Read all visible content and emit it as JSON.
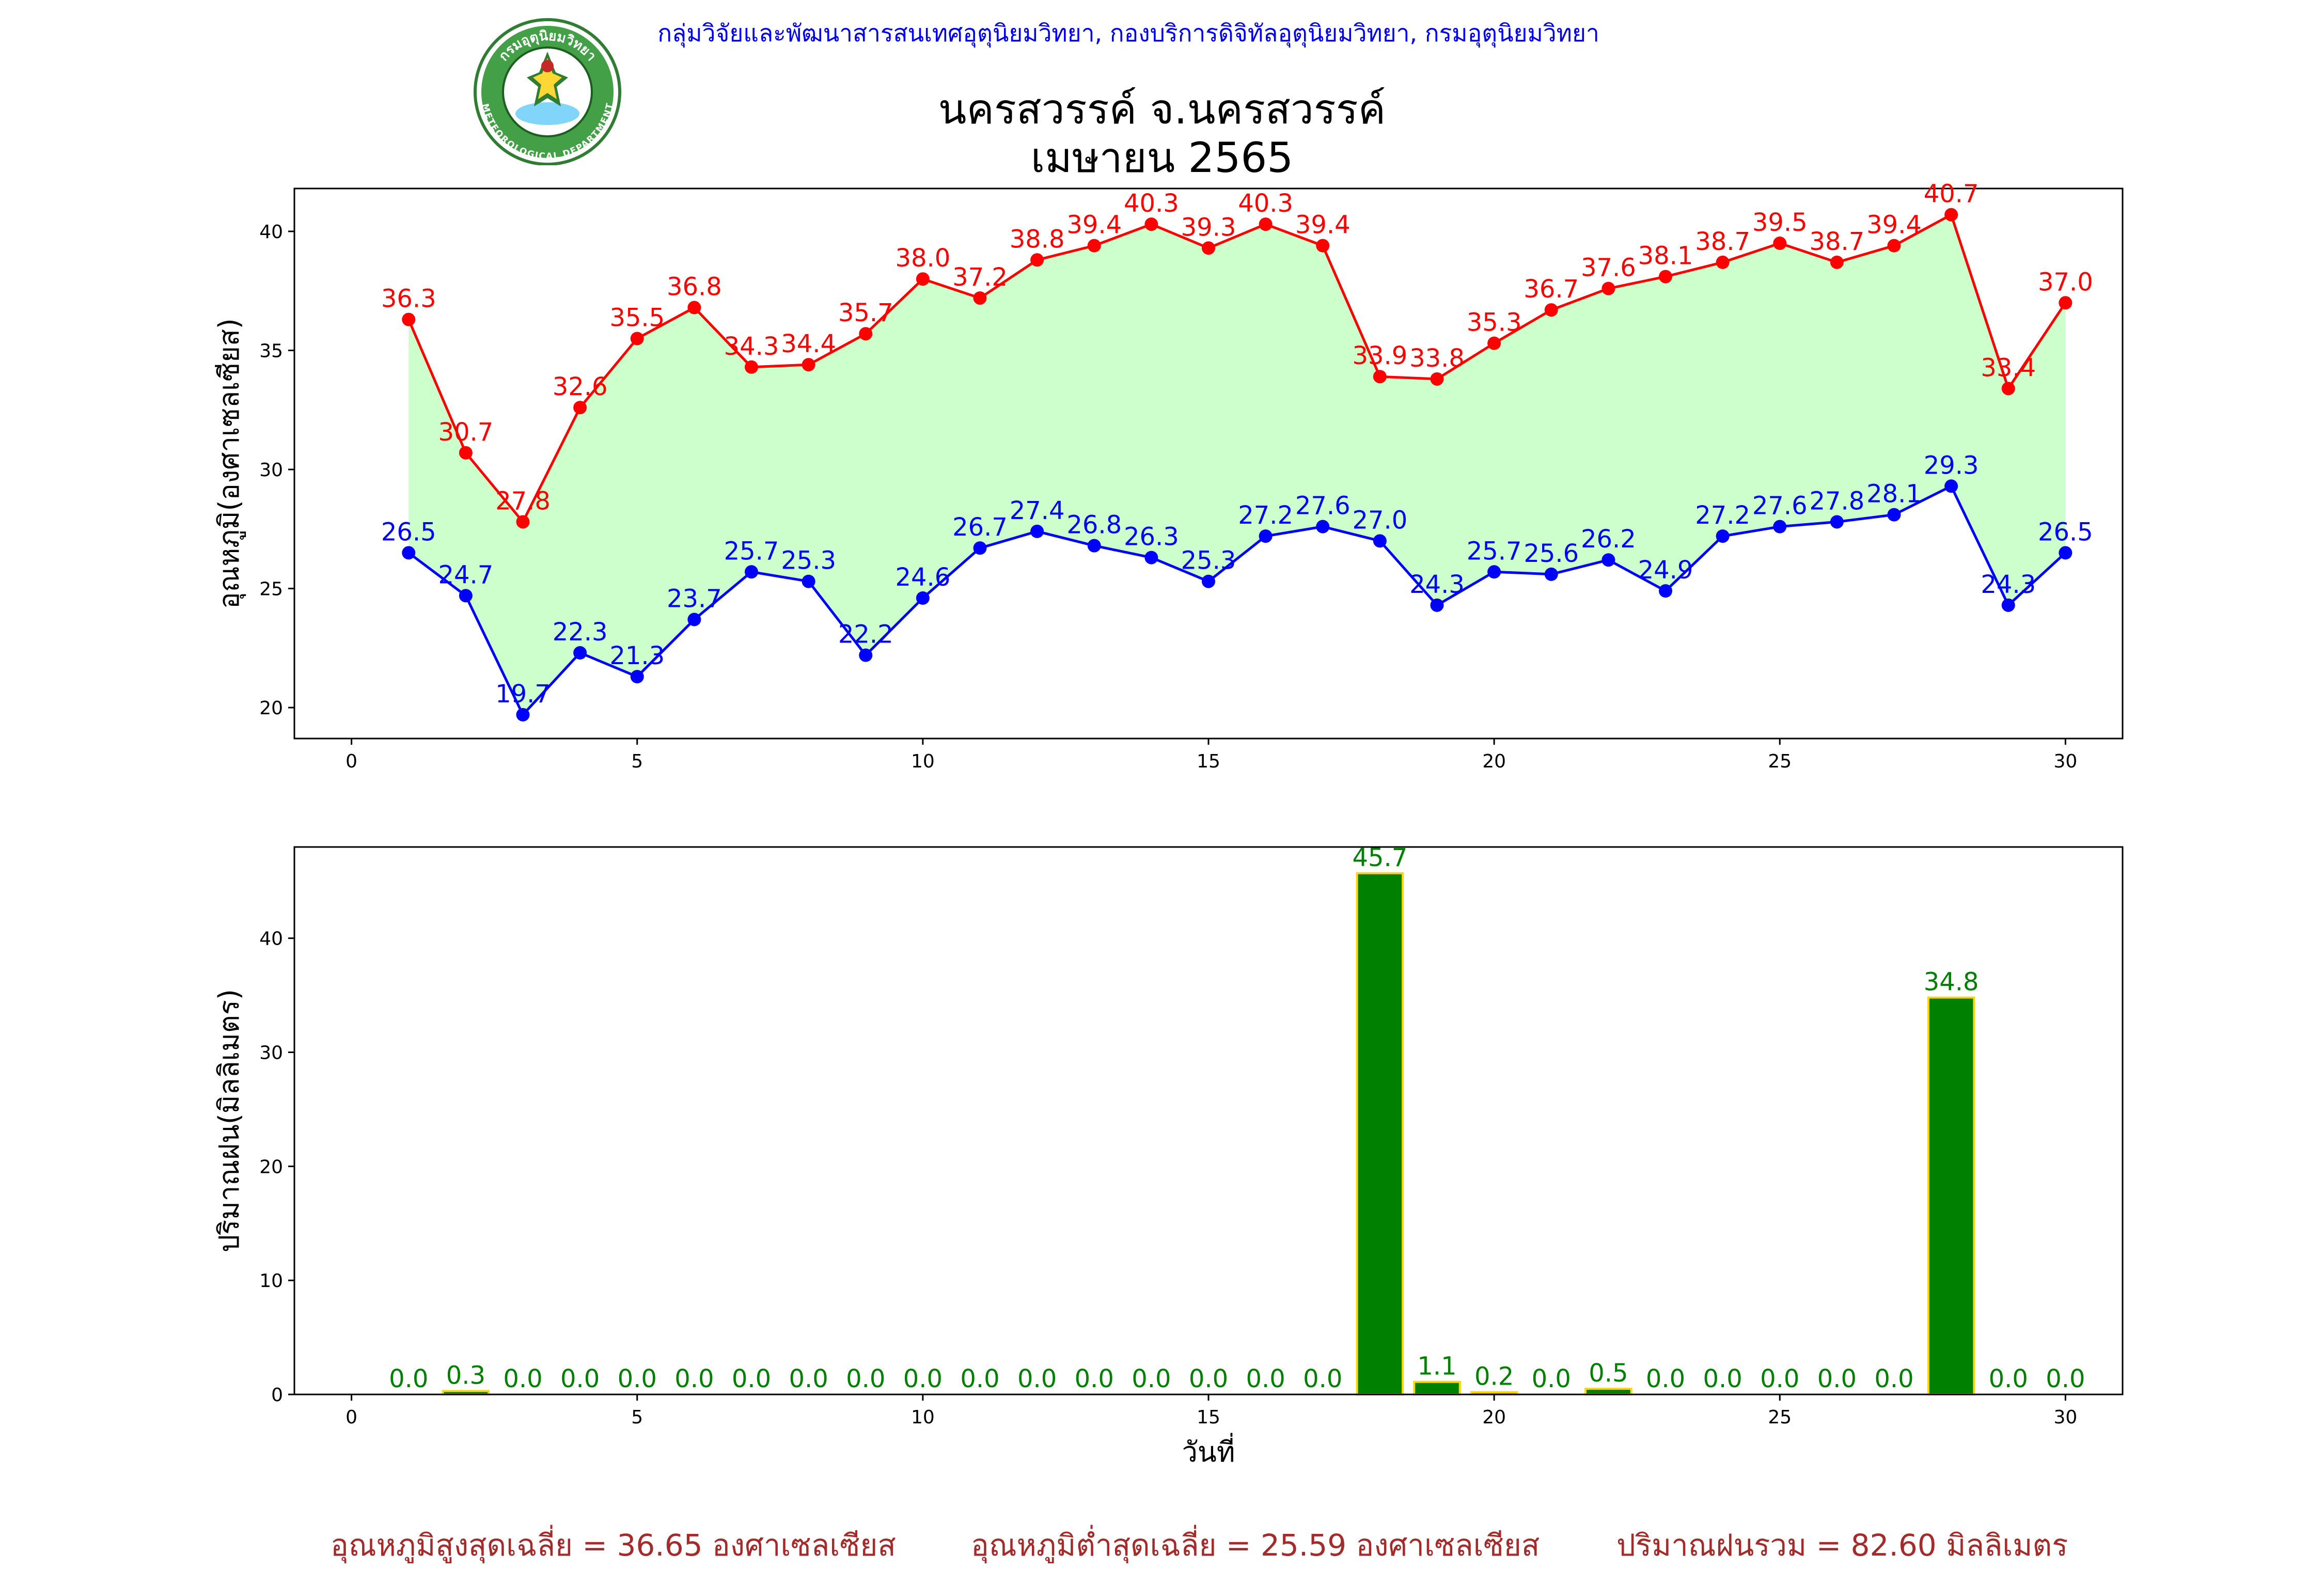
{
  "header": {
    "agency_line": "กลุ่มวิจัยและพัฒนาสารสนเทศอุตุนิยมวิทยา, กองบริการดิจิทัลอุตุนิยมวิทยา, กรมอุตุนิยมวิทยา",
    "title_line1": "นครสวรรค์  จ.นครสวรรค์",
    "title_line2": "เมษายน 2565",
    "logo": {
      "icon": "meteorological-department-seal-icon",
      "text_top": "กรมอุตุนิยมวิทยา",
      "text_bottom": "METEOROLOGICAL DEPARTMENT"
    }
  },
  "chart_data": [
    {
      "type": "line",
      "title": "",
      "xlabel": "",
      "ylabel": "อุณหภูมิ(องศาเซลเซียส)",
      "x": [
        1,
        2,
        3,
        4,
        5,
        6,
        7,
        8,
        9,
        10,
        11,
        12,
        13,
        14,
        15,
        16,
        17,
        18,
        19,
        20,
        21,
        22,
        23,
        24,
        25,
        26,
        27,
        28,
        29,
        30
      ],
      "series": [
        {
          "name": "",
          "color": "#ff0000",
          "values": [
            36.3,
            30.7,
            27.8,
            32.6,
            35.5,
            36.8,
            34.3,
            34.4,
            35.7,
            38.0,
            37.2,
            38.8,
            39.4,
            40.3,
            39.3,
            40.3,
            39.4,
            33.9,
            33.8,
            35.3,
            36.7,
            37.6,
            38.1,
            38.7,
            39.5,
            38.7,
            39.4,
            40.7,
            33.4,
            37.0
          ]
        },
        {
          "name": "",
          "color": "#0000ff",
          "values": [
            26.5,
            24.7,
            19.7,
            22.3,
            21.3,
            23.7,
            25.7,
            25.3,
            22.2,
            24.6,
            26.7,
            27.4,
            26.8,
            26.3,
            25.3,
            27.2,
            27.6,
            27.0,
            24.3,
            25.7,
            25.6,
            26.2,
            24.9,
            27.2,
            27.6,
            27.8,
            28.1,
            29.3,
            24.3,
            26.5
          ]
        }
      ],
      "fill_between_color": "#ccffcc",
      "xlim": [
        -1,
        31
      ],
      "ylim": [
        18.7,
        41.8
      ],
      "xticks": [
        0,
        5,
        10,
        15,
        20,
        25,
        30
      ],
      "yticks": [
        20,
        25,
        30,
        35,
        40
      ],
      "grid": false,
      "legend": "none"
    },
    {
      "type": "bar",
      "title": "",
      "xlabel": "วันที่",
      "ylabel": "ปริมาณฝน(มิลลิเมตร)",
      "x": [
        1,
        2,
        3,
        4,
        5,
        6,
        7,
        8,
        9,
        10,
        11,
        12,
        13,
        14,
        15,
        16,
        17,
        18,
        19,
        20,
        21,
        22,
        23,
        24,
        25,
        26,
        27,
        28,
        29,
        30
      ],
      "values": [
        0.0,
        0.3,
        0.0,
        0.0,
        0.0,
        0.0,
        0.0,
        0.0,
        0.0,
        0.0,
        0.0,
        0.0,
        0.0,
        0.0,
        0.0,
        0.0,
        0.0,
        45.7,
        1.1,
        0.2,
        0.0,
        0.5,
        0.0,
        0.0,
        0.0,
        0.0,
        0.0,
        34.8,
        0.0,
        0.0
      ],
      "bar_color": "#008000",
      "edge_color": "#ffd700",
      "label_color": "#008000",
      "xlim": [
        -1,
        31
      ],
      "ylim": [
        0,
        48
      ],
      "xticks": [
        0,
        5,
        10,
        15,
        20,
        25,
        30
      ],
      "yticks": [
        0,
        10,
        20,
        30,
        40
      ],
      "grid": false,
      "legend": "none"
    }
  ],
  "summary": {
    "avg_max": "อุณหภูมิสูงสุดเฉลี่ย = 36.65 องศาเซลเซียส",
    "avg_min": "อุณหภูมิต่ำสุดเฉลี่ย = 25.59 องศาเซลเซียส",
    "total_rain": "ปริมาณฝนรวม = 82.60 มิลลิเมตร",
    "color": "#a52a2a"
  }
}
